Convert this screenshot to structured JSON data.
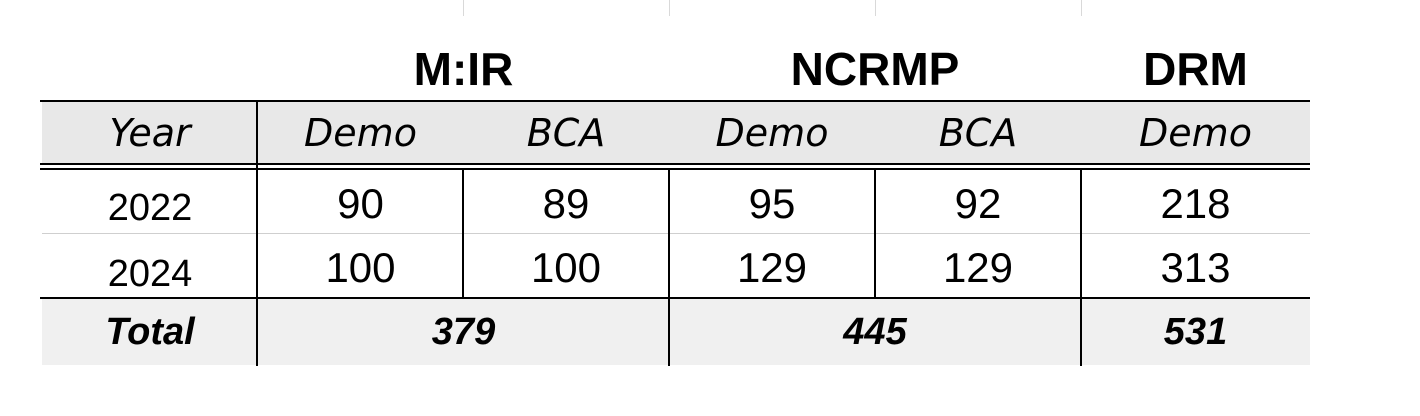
{
  "groups": [
    "M:IR",
    "NCRMP",
    "DRM"
  ],
  "header": {
    "year": "Year",
    "sub": [
      "Demo",
      "BCA",
      "Demo",
      "BCA",
      "Demo"
    ]
  },
  "rows": [
    {
      "year": "2022",
      "values": [
        "90",
        "89",
        "95",
        "92",
        "218"
      ]
    },
    {
      "year": "2024",
      "values": [
        "100",
        "100",
        "129",
        "129",
        "313"
      ]
    }
  ],
  "total": {
    "label": "Total",
    "values": [
      "379",
      "445",
      "531"
    ]
  }
}
